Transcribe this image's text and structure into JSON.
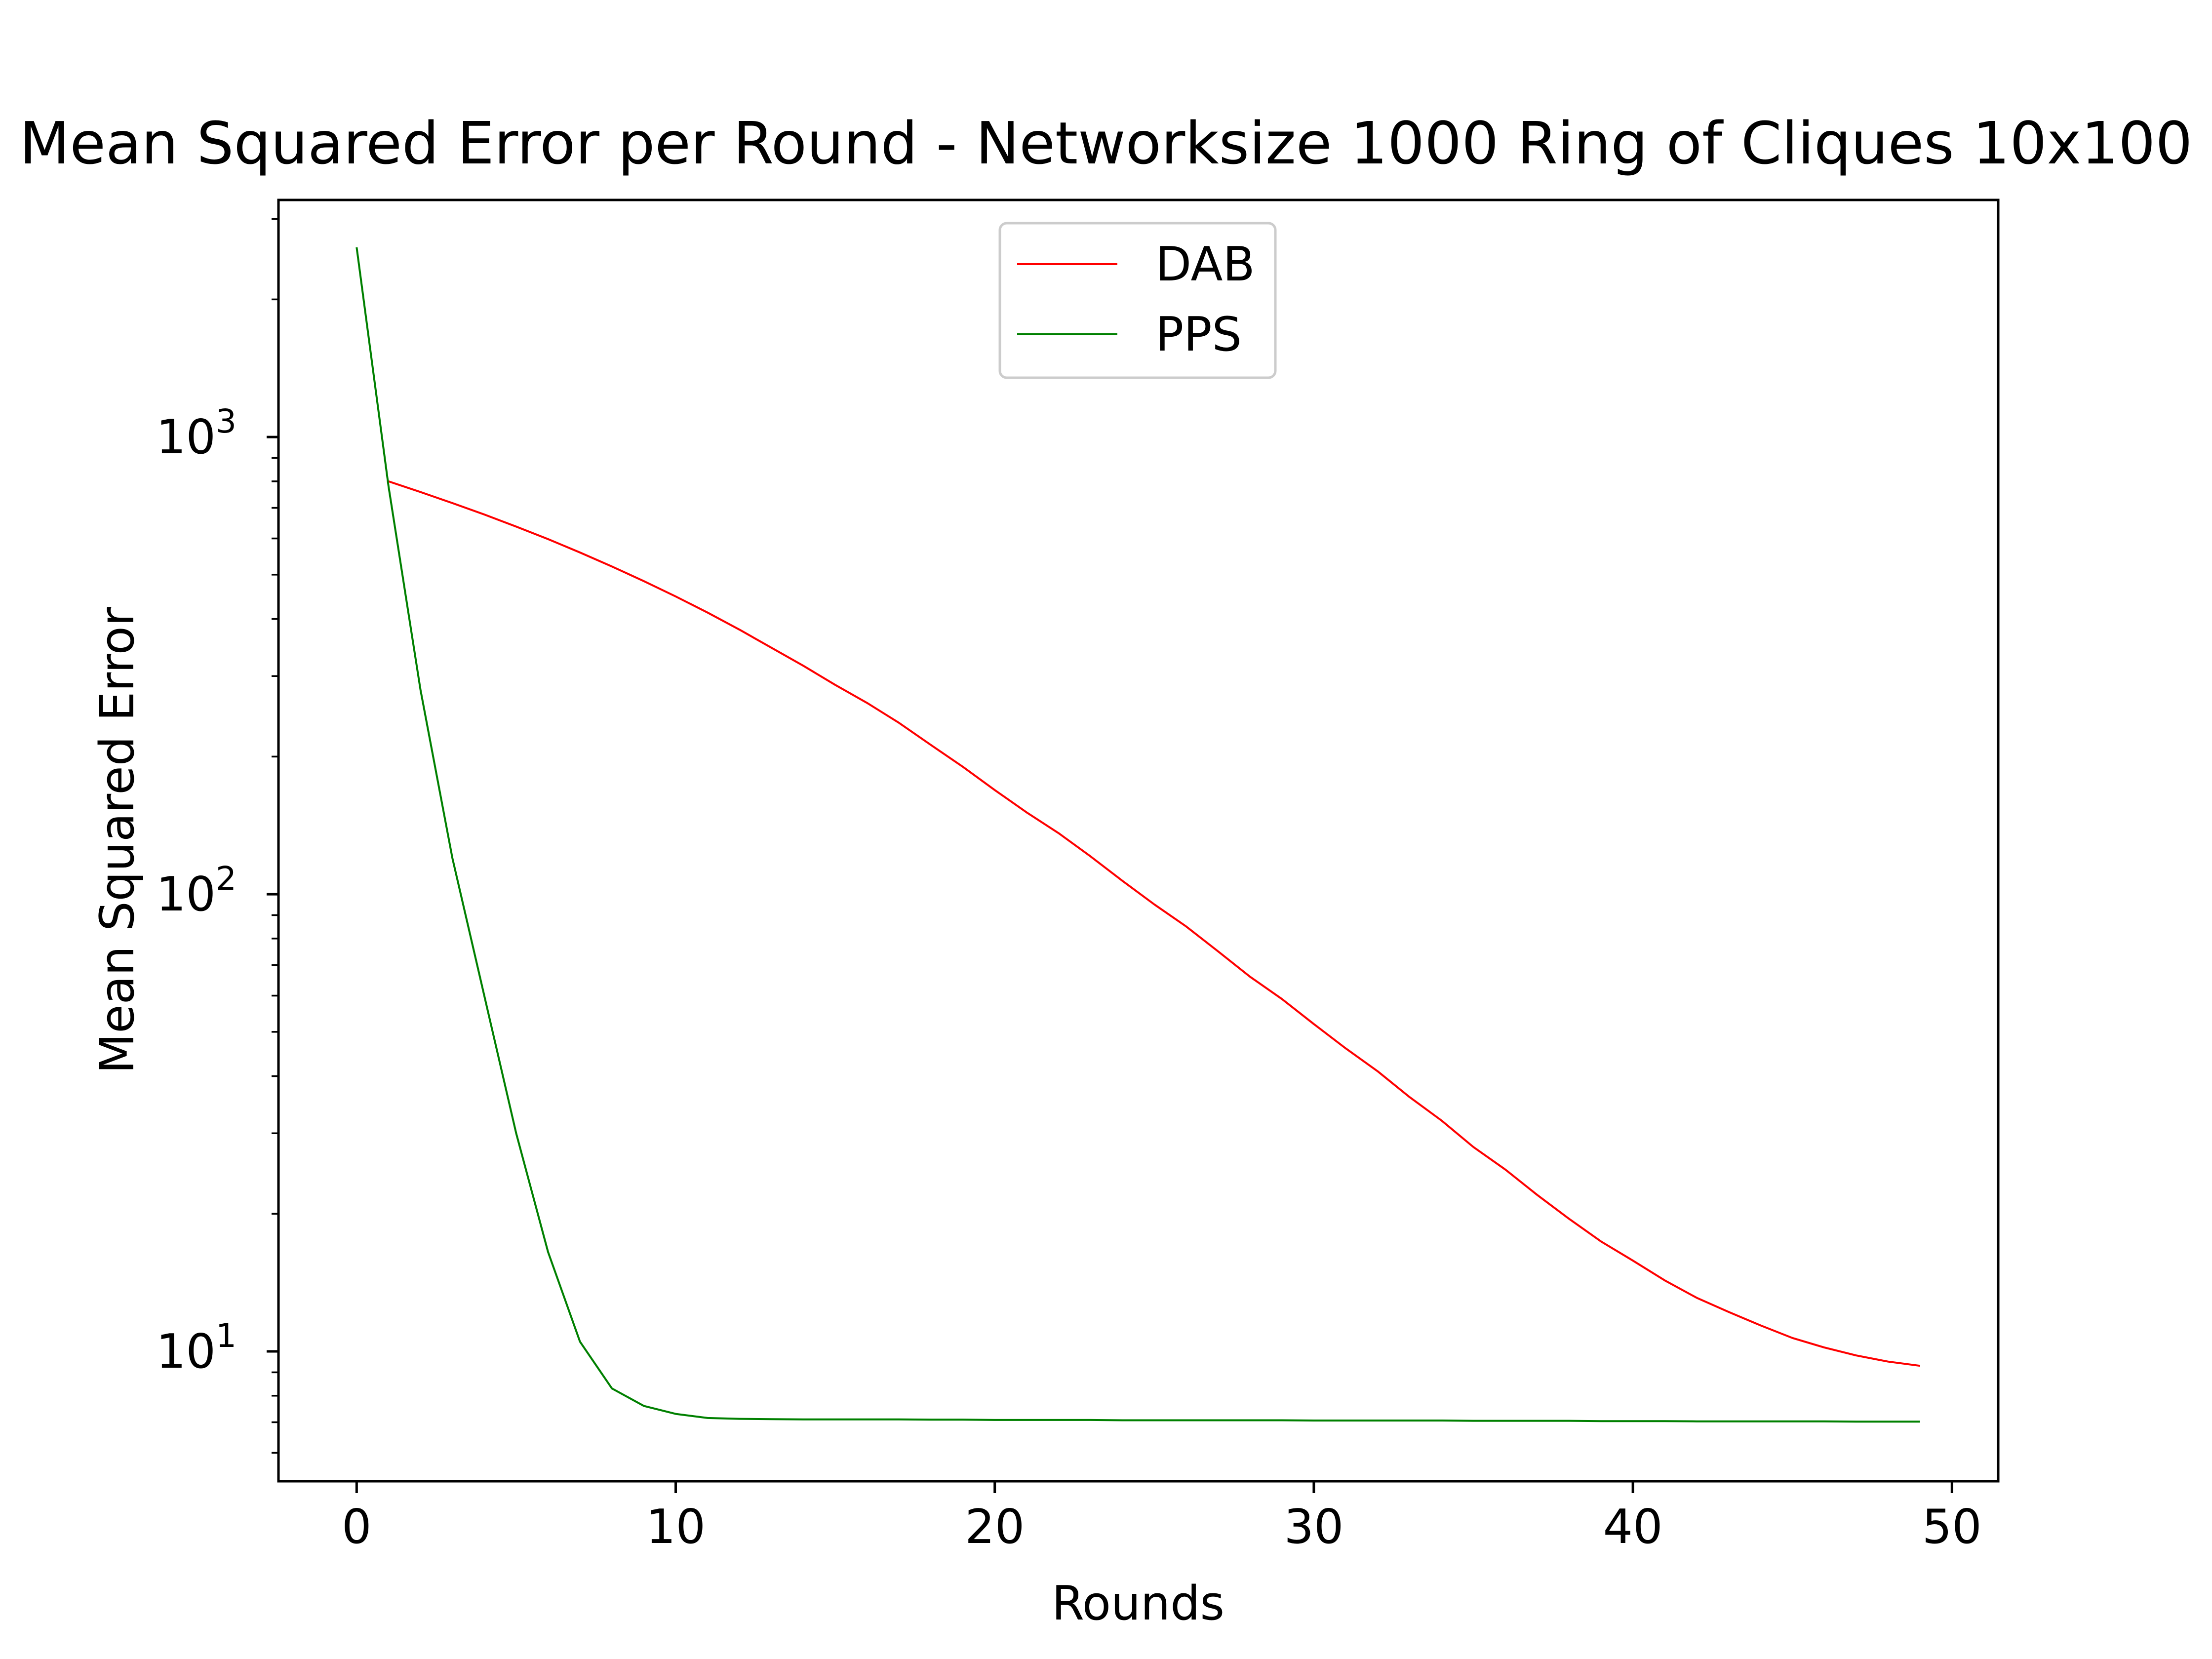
{
  "chart_data": {
    "type": "line",
    "title": "Mean Squared Error per Round - Networksize 1000 Ring of Cliques 10x100",
    "xlabel": "Rounds",
    "ylabel": "Mean Squared Error",
    "xlim": [
      -2.45,
      51.45
    ],
    "ylim": [
      5.2,
      3300
    ],
    "yscale": "log",
    "grid": false,
    "legend_position": "top-center",
    "x_ticks": [
      "0",
      "10",
      "20",
      "30",
      "40",
      "50"
    ],
    "y_ticks": [
      {
        "base": "10",
        "exp": "1"
      },
      {
        "base": "10",
        "exp": "2"
      },
      {
        "base": "10",
        "exp": "3"
      }
    ],
    "series": [
      {
        "name": "DAB",
        "color": "#ff0000",
        "x": [
          1,
          2,
          3,
          4,
          5,
          6,
          7,
          8,
          9,
          10,
          11,
          12,
          13,
          14,
          15,
          16,
          17,
          18,
          19,
          20,
          21,
          22,
          23,
          24,
          25,
          26,
          27,
          28,
          29,
          30,
          31,
          32,
          33,
          34,
          35,
          36,
          37,
          38,
          39,
          40,
          41,
          42,
          43,
          44,
          45,
          46,
          47,
          48,
          49
        ],
        "values": [
          800,
          758,
          717,
          677,
          637,
          598,
          559,
          521,
          484,
          448,
          413,
          379,
          346,
          316,
          287,
          262,
          237,
          212,
          190,
          169,
          151,
          136,
          121,
          107,
          95,
          85,
          75,
          66,
          59,
          52,
          46,
          41,
          36,
          32,
          28,
          25,
          22,
          19.5,
          17.4,
          15.8,
          14.3,
          13.1,
          12.2,
          11.4,
          10.7,
          10.2,
          9.8,
          9.5,
          9.3
        ]
      },
      {
        "name": "PPS",
        "color": "#008000",
        "x": [
          0,
          1,
          2,
          3,
          4,
          5,
          6,
          7,
          8,
          9,
          10,
          11,
          12,
          13,
          14,
          15,
          16,
          17,
          18,
          19,
          20,
          21,
          22,
          23,
          24,
          25,
          26,
          27,
          28,
          29,
          30,
          31,
          32,
          33,
          34,
          35,
          36,
          37,
          38,
          39,
          40,
          41,
          42,
          43,
          44,
          45,
          46,
          47,
          48,
          49
        ],
        "values": [
          2600,
          780,
          280,
          120,
          60,
          30,
          16.5,
          10.5,
          8.3,
          7.6,
          7.3,
          7.15,
          7.12,
          7.11,
          7.1,
          7.1,
          7.1,
          7.1,
          7.09,
          7.09,
          7.08,
          7.08,
          7.08,
          7.08,
          7.07,
          7.07,
          7.07,
          7.07,
          7.07,
          7.07,
          7.06,
          7.06,
          7.06,
          7.06,
          7.06,
          7.05,
          7.05,
          7.05,
          7.05,
          7.04,
          7.04,
          7.04,
          7.03,
          7.03,
          7.03,
          7.03,
          7.03,
          7.02,
          7.02,
          7.02
        ]
      }
    ]
  }
}
